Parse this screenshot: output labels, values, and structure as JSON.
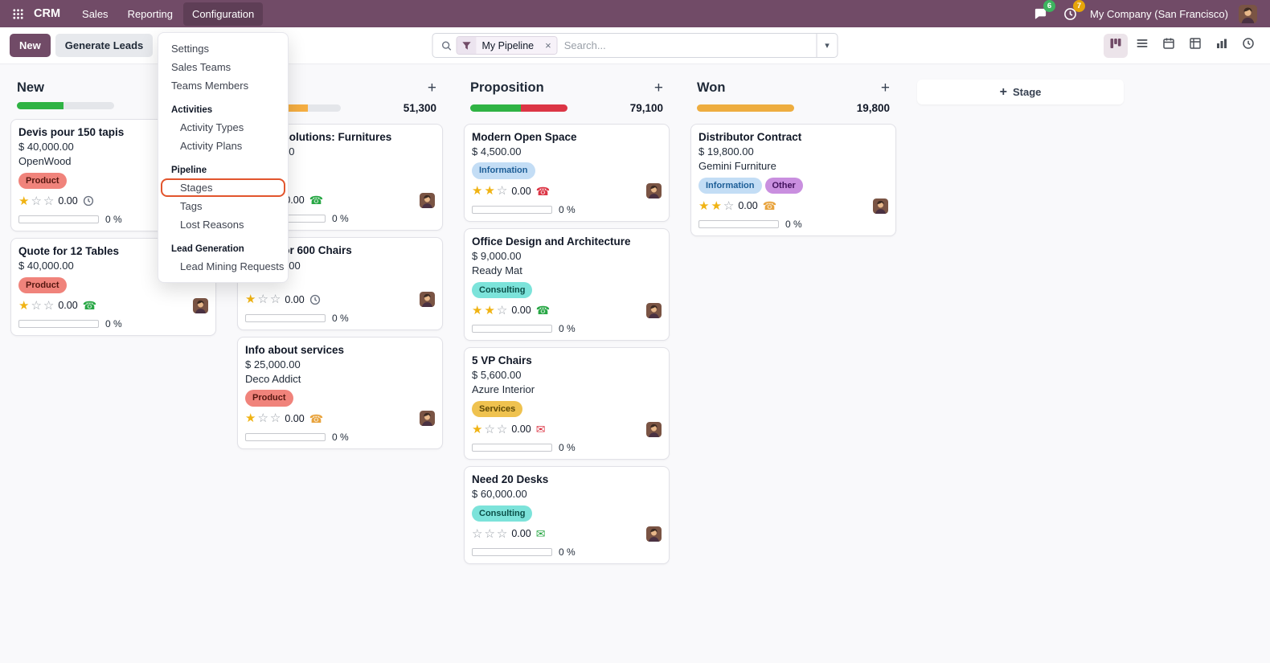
{
  "colors": {
    "accent": "#714B67",
    "highlight_border": "#e2552d"
  },
  "icons": {
    "plus": "+",
    "caret": "▾",
    "close": "×"
  },
  "navbar": {
    "brand": "CRM",
    "menus": [
      {
        "label": "Sales",
        "active": false
      },
      {
        "label": "Reporting",
        "active": false
      },
      {
        "label": "Configuration",
        "active": true
      }
    ],
    "messages_badge": "6",
    "activities_badge": "7",
    "company": "My Company (San Francisco)"
  },
  "control_panel": {
    "new_label": "New",
    "generate_leads_label": "Generate Leads",
    "breadcrumb": "Pipeline",
    "search": {
      "facet": "My Pipeline",
      "placeholder": "Search..."
    },
    "views": [
      {
        "icon": "kanban",
        "active": true
      },
      {
        "icon": "list",
        "active": false
      },
      {
        "icon": "calendar",
        "active": false
      },
      {
        "icon": "pivot",
        "active": false
      },
      {
        "icon": "graph",
        "active": false
      },
      {
        "icon": "activity",
        "active": false
      }
    ]
  },
  "config_menu": {
    "entries": [
      {
        "type": "item",
        "label": "Settings"
      },
      {
        "type": "item",
        "label": "Sales Teams"
      },
      {
        "type": "item",
        "label": "Teams Members"
      },
      {
        "type": "section",
        "label": "Activities"
      },
      {
        "type": "sub",
        "label": "Activity Types"
      },
      {
        "type": "sub",
        "label": "Activity Plans"
      },
      {
        "type": "section",
        "label": "Pipeline"
      },
      {
        "type": "sub",
        "label": "Stages",
        "highlighted": true
      },
      {
        "type": "sub",
        "label": "Tags"
      },
      {
        "type": "sub",
        "label": "Lost Reasons"
      },
      {
        "type": "section",
        "label": "Lead Generation"
      },
      {
        "type": "sub",
        "label": "Lead Mining Requests"
      }
    ]
  },
  "board": {
    "add_stage_label": "Stage",
    "columns": [
      {
        "title": "New",
        "total": "",
        "progress": [
          {
            "color": "#2fb344",
            "pct": 48
          }
        ],
        "cards": [
          {
            "title": "Devis pour 150 tapis",
            "amount": "$ 40,000.00",
            "company": "OpenWood",
            "tags": [
              {
                "label": "Product",
                "bg": "#f0837b",
                "fg": "#551710"
              }
            ],
            "stars": 1,
            "count": "0.00",
            "activity": {
              "icon": "clock",
              "color": "#6b7280"
            },
            "percent": "0 %"
          },
          {
            "title": "Quote for 12 Tables",
            "amount": "$ 40,000.00",
            "tags": [
              {
                "label": "Product",
                "bg": "#f0837b",
                "fg": "#551710"
              }
            ],
            "stars": 1,
            "count": "0.00",
            "activity": {
              "icon": "phone",
              "color": "#28a745"
            },
            "percent": "0 %"
          }
        ]
      },
      {
        "title": "",
        "total": "51,300",
        "progress": [
          {
            "color": "#f5ae42",
            "pct": 66
          }
        ],
        "cards": [
          {
            "title": "Global Solutions: Furnitures",
            "amount": "$ 3,800.00",
            "hidden_rows": 2,
            "stars": 1,
            "count": "0.00",
            "activity": {
              "icon": "phone",
              "color": "#28a745"
            },
            "percent": "0 %"
          },
          {
            "title": "Quote for 600 Chairs",
            "amount": "$ 22,500.00",
            "hidden_rows": 1,
            "stars": 1,
            "count": "0.00",
            "activity": {
              "icon": "clock",
              "color": "#6b7280"
            },
            "percent": "0 %"
          },
          {
            "title": "Info about services",
            "amount": "$ 25,000.00",
            "company": "Deco Addict",
            "tags": [
              {
                "label": "Product",
                "bg": "#f0837b",
                "fg": "#551710"
              }
            ],
            "stars": 1,
            "count": "0.00",
            "activity": {
              "icon": "phone",
              "color": "#e8a33d"
            },
            "percent": "0 %"
          }
        ]
      },
      {
        "title": "Proposition",
        "total": "79,100",
        "progress": [
          {
            "color": "#2fb344",
            "pct": 52
          },
          {
            "color": "#dc3545",
            "pct": 48
          }
        ],
        "cards": [
          {
            "title": "Modern Open Space",
            "amount": "$ 4,500.00",
            "tags": [
              {
                "label": "Information",
                "bg": "#c3ddf5",
                "fg": "#1d5e97"
              }
            ],
            "stars": 2,
            "count": "0.00",
            "activity": {
              "icon": "phone",
              "color": "#dc3545"
            },
            "percent": "0 %"
          },
          {
            "title": "Office Design and Architecture",
            "amount": "$ 9,000.00",
            "company": "Ready Mat",
            "tags": [
              {
                "label": "Consulting",
                "bg": "#7ce3da",
                "fg": "#0b4f48"
              }
            ],
            "stars": 2,
            "count": "0.00",
            "activity": {
              "icon": "phone",
              "color": "#28a745"
            },
            "percent": "0 %"
          },
          {
            "title": "5 VP Chairs",
            "amount": "$ 5,600.00",
            "company": "Azure Interior",
            "tags": [
              {
                "label": "Services",
                "bg": "#efc24f",
                "fg": "#5f4a06"
              }
            ],
            "stars": 1,
            "count": "0.00",
            "activity": {
              "icon": "envelope",
              "color": "#dc3545"
            },
            "percent": "0 %"
          },
          {
            "title": "Need 20 Desks",
            "amount": "$ 60,000.00",
            "tags": [
              {
                "label": "Consulting",
                "bg": "#7ce3da",
                "fg": "#0b4f48"
              }
            ],
            "stars": 0,
            "count": "0.00",
            "activity": {
              "icon": "envelope",
              "color": "#28a745"
            },
            "percent": "0 %"
          }
        ]
      },
      {
        "title": "Won",
        "total": "19,800",
        "progress": [
          {
            "color": "#eead3f",
            "pct": 100
          }
        ],
        "cards": [
          {
            "title": "Distributor Contract",
            "amount": "$ 19,800.00",
            "company": "Gemini Furniture",
            "tags": [
              {
                "label": "Information",
                "bg": "#c3ddf5",
                "fg": "#1d5e97"
              },
              {
                "label": "Other",
                "bg": "#c98fdf",
                "fg": "#43125e"
              }
            ],
            "stars": 2,
            "count": "0.00",
            "activity": {
              "icon": "phone",
              "color": "#e8a33d"
            },
            "percent": "0 %"
          }
        ]
      }
    ]
  }
}
